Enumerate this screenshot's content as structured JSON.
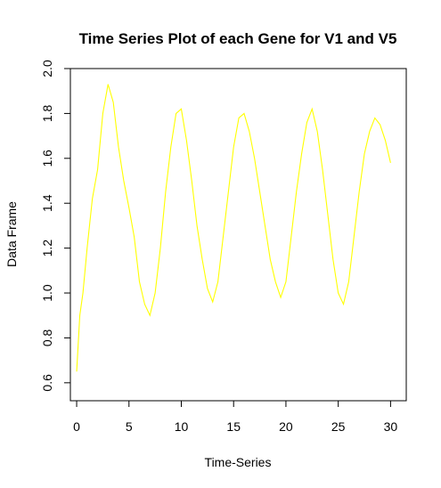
{
  "chart_data": {
    "type": "line",
    "title": "Time Series Plot of each Gene for V1 and V5",
    "xlabel": "Time-Series",
    "ylabel": "Data Frame",
    "xlim": [
      -0.6,
      31.5
    ],
    "ylim": [
      0.52,
      2.0
    ],
    "xticks": [
      0,
      5,
      10,
      15,
      20,
      25,
      30
    ],
    "yticks": [
      0.6,
      0.8,
      1.0,
      1.2,
      1.4,
      1.6,
      1.8,
      2.0
    ],
    "xtick_labels": [
      "0",
      "5",
      "10",
      "15",
      "20",
      "25",
      "30"
    ],
    "ytick_labels": [
      "0.6",
      "0.8",
      "1.0",
      "1.2",
      "1.4",
      "1.6",
      "1.8",
      "2.0"
    ],
    "grid": false,
    "legend": "none",
    "series": [
      {
        "color": "#ffff00",
        "x": [
          0.0,
          0.3,
          0.6,
          1.0,
          1.5,
          2.0,
          2.5,
          3.0,
          3.5,
          4.0,
          4.5,
          5.0,
          5.5,
          6.0,
          6.5,
          7.0,
          7.5,
          8.0,
          8.5,
          9.0,
          9.5,
          10.0,
          10.5,
          11.0,
          11.5,
          12.0,
          12.5,
          13.0,
          13.5,
          14.0,
          14.5,
          15.0,
          15.5,
          16.0,
          16.5,
          17.0,
          17.5,
          18.0,
          18.5,
          19.0,
          19.5,
          20.0,
          20.5,
          21.0,
          21.5,
          22.0,
          22.5,
          23.0,
          23.5,
          24.0,
          24.5,
          25.0,
          25.5,
          26.0,
          26.5,
          27.0,
          27.5,
          28.0,
          28.5,
          29.0,
          29.5,
          30.0
        ],
        "y": [
          0.65,
          0.9,
          1.0,
          1.2,
          1.42,
          1.55,
          1.8,
          1.93,
          1.85,
          1.65,
          1.5,
          1.38,
          1.25,
          1.05,
          0.95,
          0.9,
          1.0,
          1.2,
          1.45,
          1.65,
          1.8,
          1.82,
          1.68,
          1.5,
          1.3,
          1.15,
          1.02,
          0.96,
          1.05,
          1.25,
          1.45,
          1.65,
          1.78,
          1.8,
          1.72,
          1.6,
          1.45,
          1.3,
          1.15,
          1.05,
          0.98,
          1.05,
          1.25,
          1.45,
          1.62,
          1.76,
          1.82,
          1.72,
          1.55,
          1.35,
          1.15,
          1.0,
          0.95,
          1.05,
          1.25,
          1.45,
          1.62,
          1.72,
          1.78,
          1.75,
          1.68,
          1.58
        ]
      }
    ]
  }
}
